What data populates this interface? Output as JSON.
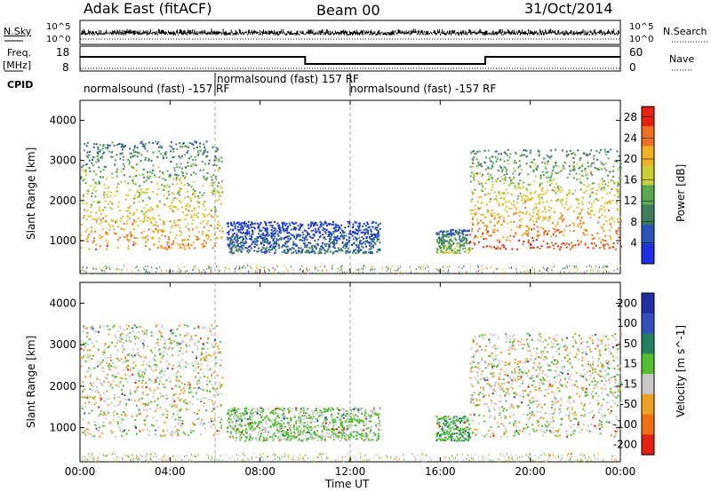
{
  "header": {
    "station": "Adak East (fitACF)",
    "beam": "Beam 00",
    "date": "31/Oct/2014"
  },
  "left_labels": {
    "nsky": "N.Sky",
    "freq": "Freq.",
    "freq_unit": "[MHz]",
    "cpid": "CPID"
  },
  "right_labels": {
    "nsearch": "N.Search",
    "nave": "Nave"
  },
  "noise_axis": {
    "left_ticks": [
      "10^5",
      "10^0"
    ],
    "right_ticks": [
      "10^5",
      "10^0"
    ]
  },
  "freq_axis": {
    "left_ticks": [
      "18",
      "8"
    ],
    "right_ticks": [
      "60",
      "0"
    ]
  },
  "cpid_segments": [
    {
      "label": "normalsound (fast) -157 RF",
      "start_hour": 0
    },
    {
      "label": "normalsound (fast) 157 RF",
      "start_hour": 6
    },
    {
      "label": "normalsound (fast) -157 RF",
      "start_hour": 12
    }
  ],
  "chart_data": [
    {
      "type": "heatmap",
      "panel": "power",
      "ylabel": "Slant Range [km]",
      "xlabel": "Time UT",
      "xlim": [
        "00:00",
        "00:00"
      ],
      "x_ticks": [
        "00:00",
        "04:00",
        "08:00",
        "12:00",
        "16:00",
        "20:00",
        "00:00"
      ],
      "ylim": [
        180,
        4500
      ],
      "y_ticks": [
        1000,
        2000,
        3000,
        4000
      ],
      "colorbar": {
        "label": "Power [dB]",
        "ticks": [
          4,
          8,
          12,
          16,
          20,
          24,
          28
        ],
        "range": [
          0,
          30
        ],
        "colors": [
          "#1d2ee8",
          "#2a55b8",
          "#3d7f5a",
          "#5aa850",
          "#c9d030",
          "#f0b020",
          "#f07020",
          "#e82010"
        ]
      },
      "regions": [
        {
          "t_start": 0.0,
          "t_end": 6.3,
          "r_min": 800,
          "r_max": 3500,
          "typical_db": 18
        },
        {
          "t_start": 6.5,
          "t_end": 13.3,
          "r_min": 700,
          "r_max": 1500,
          "typical_db": 6
        },
        {
          "t_start": 15.8,
          "t_end": 17.3,
          "r_min": 700,
          "r_max": 1300,
          "typical_db": 12
        },
        {
          "t_start": 17.3,
          "t_end": 24.0,
          "r_min": 800,
          "r_max": 3300,
          "typical_db": 20
        }
      ]
    },
    {
      "type": "heatmap",
      "panel": "velocity",
      "ylabel": "Slant Range [km]",
      "xlabel": "Time UT",
      "xlim": [
        "00:00",
        "00:00"
      ],
      "x_ticks": [
        "00:00",
        "04:00",
        "08:00",
        "12:00",
        "16:00",
        "20:00",
        "00:00"
      ],
      "ylim": [
        180,
        4500
      ],
      "y_ticks": [
        1000,
        2000,
        3000,
        4000
      ],
      "colorbar": {
        "label": "Velocity [m s^-1]",
        "ticks": [
          200,
          100,
          50,
          15,
          -15,
          -50,
          -100,
          -200
        ],
        "colors": [
          "#2030a0",
          "#3050c0",
          "#208060",
          "#50c030",
          "#c8c8c8",
          "#f0a020",
          "#f07010",
          "#e82010"
        ]
      },
      "regions": [
        {
          "t_start": 0.0,
          "t_end": 6.3,
          "r_min": 800,
          "r_max": 3500,
          "typical_ms": 0
        },
        {
          "t_start": 6.5,
          "t_end": 13.3,
          "r_min": 700,
          "r_max": 1500,
          "typical_ms": 20
        },
        {
          "t_start": 15.8,
          "t_end": 17.3,
          "r_min": 700,
          "r_max": 1300,
          "typical_ms": 40
        },
        {
          "t_start": 17.3,
          "t_end": 24.0,
          "r_min": 800,
          "r_max": 3300,
          "typical_ms": 0
        }
      ]
    }
  ]
}
